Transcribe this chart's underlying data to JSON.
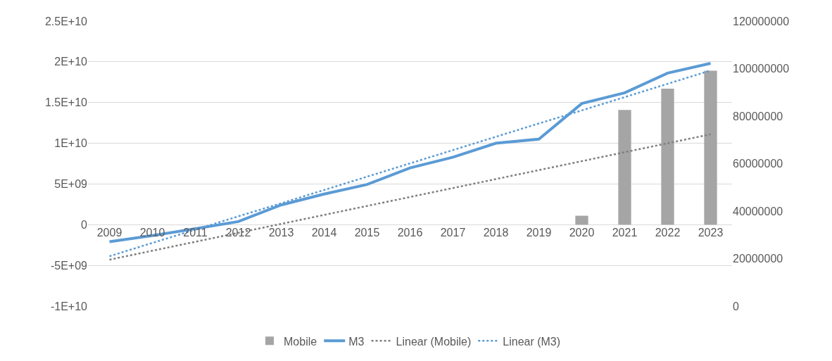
{
  "chart_data": {
    "type": "bar",
    "categories": [
      "2009",
      "2010",
      "2011",
      "2012",
      "2013",
      "2014",
      "2015",
      "2016",
      "2017",
      "2018",
      "2019",
      "2020",
      "2021",
      "2022",
      "2023"
    ],
    "series": [
      {
        "name": "Mobile",
        "color": "#a5a5a5",
        "values": [
          0,
          0,
          0,
          0,
          0,
          0,
          0,
          0,
          0,
          0,
          0,
          1100000000.0,
          14100000000.0,
          16700000000.0,
          18900000000.0
        ]
      },
      {
        "name": "M3",
        "type": "line",
        "axis": "y2",
        "color": "#5b9bd5",
        "line_style": "solid",
        "values": [
          27100000,
          29700000,
          32600000,
          35600000,
          42600000,
          47200000,
          51200000,
          58200000,
          62700000,
          68600000,
          70300000,
          85300000,
          89800000,
          98100000,
          102200000
        ]
      },
      {
        "name": "Linear (Mobile)",
        "type": "line",
        "color": "#7f7f7f",
        "line_style": "dotted",
        "values": [
          -4300000000.0,
          -3200000000.0,
          -2100000000.0,
          -1000000000.0,
          100000000.0,
          1200000000.0,
          2300000000.0,
          3400000000.0,
          4500000000.0,
          5600000000.0,
          6700000000.0,
          7800000000.0,
          8900000000.0,
          10000000000.0,
          11100000000.0
        ]
      },
      {
        "name": "Linear (M3)",
        "type": "line",
        "axis": "y2",
        "color": "#5b9bd5",
        "line_style": "dotted",
        "values": [
          21000000,
          26600000,
          32200000,
          37800000,
          43300000,
          48900000,
          54500000,
          60100000,
          65700000,
          71300000,
          76900000,
          82400000,
          88000000,
          93600000,
          99200000
        ]
      }
    ],
    "ylim": [
      -10000000000.0,
      25000000000.0
    ],
    "yticks": [
      {
        "value": -10000000000.0,
        "label": "-1E+10"
      },
      {
        "value": -5000000000.0,
        "label": "-5E+09"
      },
      0,
      {
        "value": 5000000000.0,
        "label": "5E+09"
      },
      {
        "value": 10000000000.0,
        "label": "1E+10"
      },
      {
        "value": 15000000000.0,
        "label": "1.5E+10"
      },
      {
        "value": 20000000000.0,
        "label": "2E+10"
      },
      {
        "value": 25000000000.0,
        "label": "2.5E+10"
      }
    ],
    "y2lim": [
      0,
      120000000
    ],
    "y2ticks": [
      0,
      20000000,
      40000000,
      60000000,
      80000000,
      100000000,
      120000000
    ],
    "grid": "y",
    "legend": "bottom",
    "marker": "none"
  }
}
